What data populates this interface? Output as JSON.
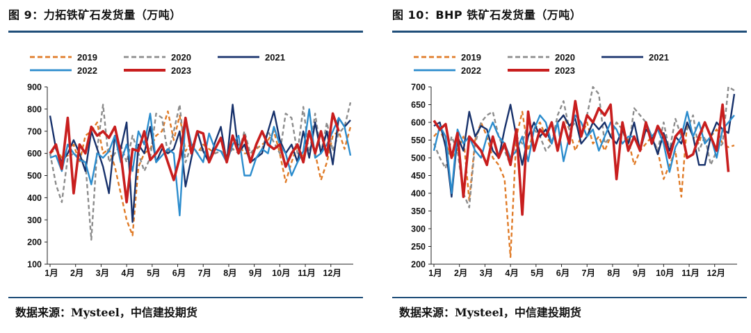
{
  "source_label": "数据来源：Mysteel，中信建投期货",
  "colors": {
    "2019": "#e07b27",
    "2020": "#8c8c8c",
    "2021": "#17316b",
    "2022": "#2b8ccd",
    "2023": "#c81e1e",
    "rule": "#1f4e79"
  },
  "chart_data": [
    {
      "type": "line",
      "title": "图 9：力拓铁矿石发货量（万吨）",
      "xlabel": "",
      "ylabel": "",
      "ylim": [
        100,
        900
      ],
      "yticks": [
        100,
        200,
        300,
        400,
        500,
        600,
        700,
        800,
        900
      ],
      "month_labels": [
        "1月",
        "2月",
        "3月",
        "4月",
        "5月",
        "6月",
        "7月",
        "8月",
        "9月",
        "10月",
        "11月",
        "12月"
      ],
      "x_unit": "week",
      "legend": [
        {
          "name": "2019",
          "style": "dashed"
        },
        {
          "name": "2020",
          "style": "dashed"
        },
        {
          "name": "2021",
          "style": "solid"
        },
        {
          "name": "2022",
          "style": "solid"
        },
        {
          "name": "2023",
          "style": "solid"
        }
      ],
      "series": [
        {
          "name": "2019",
          "values": [
            600,
            620,
            580,
            590,
            640,
            560,
            680,
            700,
            740,
            600,
            620,
            540,
            420,
            300,
            230,
            540,
            600,
            620,
            680,
            700,
            790,
            660,
            770,
            610,
            650,
            600,
            640,
            620,
            600,
            610,
            590,
            620,
            640,
            600,
            600,
            620,
            640,
            660,
            700,
            600,
            470,
            560,
            640,
            580,
            700,
            600,
            480,
            560,
            680,
            700,
            620,
            720
          ]
        },
        {
          "name": "2020",
          "values": [
            600,
            460,
            380,
            580,
            600,
            580,
            560,
            210,
            620,
            820,
            560,
            600,
            640,
            560,
            680,
            600,
            520,
            580,
            780,
            760,
            600,
            700,
            820,
            560,
            640,
            600,
            620,
            580,
            600,
            610,
            590,
            620,
            600,
            700,
            600,
            630,
            620,
            700,
            650,
            600,
            780,
            760,
            600,
            810,
            590,
            780,
            600,
            740,
            610,
            690,
            720,
            830
          ]
        },
        {
          "name": "2021",
          "values": [
            770,
            620,
            560,
            600,
            660,
            600,
            520,
            700,
            620,
            540,
            420,
            680,
            620,
            740,
            290,
            640,
            600,
            720,
            560,
            620,
            600,
            620,
            700,
            450,
            580,
            700,
            610,
            560,
            650,
            720,
            560,
            820,
            600,
            640,
            560,
            580,
            600,
            700,
            790,
            660,
            600,
            640,
            560,
            700,
            580,
            740,
            600,
            700,
            550,
            760,
            720,
            750
          ]
        },
        {
          "name": "2022",
          "values": [
            580,
            590,
            520,
            640,
            600,
            570,
            560,
            460,
            600,
            580,
            610,
            680,
            560,
            640,
            520,
            700,
            640,
            780,
            560,
            590,
            620,
            600,
            320,
            760,
            640,
            600,
            560,
            690,
            620,
            610,
            560,
            640,
            680,
            500,
            500,
            580,
            620,
            600,
            720,
            640,
            600,
            500,
            560,
            610,
            800,
            580,
            600,
            640,
            700,
            760,
            720,
            590
          ]
        },
        {
          "name": "2023",
          "values": [
            600,
            640,
            530,
            760,
            420,
            640,
            600,
            720,
            680,
            700,
            670,
            720,
            600,
            380,
            620,
            610,
            700,
            570,
            600,
            640,
            560,
            480,
            580,
            760,
            600,
            700,
            690,
            560,
            620,
            670,
            560,
            680,
            600,
            680,
            560,
            640,
            700,
            640,
            620,
            640,
            540,
            600,
            640,
            560,
            700,
            600,
            700,
            590,
            780,
            700
          ]
        }
      ]
    },
    {
      "type": "line",
      "title": "图 10：BHP 铁矿石发货量（万吨）",
      "xlabel": "",
      "ylabel": "",
      "ylim": [
        200,
        700
      ],
      "yticks": [
        200,
        250,
        300,
        350,
        400,
        450,
        500,
        550,
        600,
        650,
        700
      ],
      "month_labels": [
        "1月",
        "2月",
        "3月",
        "4月",
        "5月",
        "6月",
        "7月",
        "8月",
        "9月",
        "10月",
        "11月",
        "12月"
      ],
      "x_unit": "week",
      "legend": [
        {
          "name": "2019",
          "style": "dashed"
        },
        {
          "name": "2020",
          "style": "dashed"
        },
        {
          "name": "2021",
          "style": "solid"
        },
        {
          "name": "2022",
          "style": "solid"
        },
        {
          "name": "2023",
          "style": "solid"
        }
      ],
      "series": [
        {
          "name": "2019",
          "values": [
            560,
            580,
            540,
            500,
            520,
            560,
            380,
            550,
            600,
            560,
            500,
            480,
            440,
            220,
            560,
            630,
            520,
            580,
            600,
            560,
            540,
            600,
            620,
            580,
            520,
            560,
            600,
            540,
            560,
            520,
            560,
            600,
            580,
            550,
            480,
            520,
            540,
            560,
            520,
            440,
            480,
            520,
            390,
            600,
            560,
            540,
            600,
            560,
            580,
            540,
            530,
            535
          ]
        },
        {
          "name": "2020",
          "values": [
            540,
            500,
            470,
            560,
            520,
            400,
            360,
            540,
            600,
            620,
            630,
            560,
            520,
            480,
            560,
            540,
            600,
            580,
            560,
            520,
            540,
            620,
            660,
            580,
            600,
            560,
            620,
            700,
            680,
            540,
            560,
            600,
            580,
            520,
            640,
            620,
            600,
            560,
            520,
            600,
            520,
            610,
            560,
            580,
            620,
            520,
            560,
            480,
            520,
            540,
            700,
            690
          ]
        },
        {
          "name": "2021",
          "values": [
            590,
            600,
            530,
            390,
            560,
            520,
            630,
            560,
            590,
            580,
            520,
            500,
            580,
            650,
            560,
            480,
            560,
            600,
            560,
            580,
            540,
            600,
            620,
            590,
            610,
            540,
            560,
            600,
            580,
            600,
            560,
            540,
            580,
            540,
            600,
            520,
            580,
            560,
            510,
            570,
            520,
            560,
            540,
            600,
            560,
            480,
            480,
            560,
            600,
            580,
            570,
            680
          ]
        },
        {
          "name": "2022",
          "values": [
            520,
            590,
            560,
            400,
            580,
            540,
            560,
            520,
            500,
            560,
            600,
            560,
            540,
            500,
            520,
            560,
            490,
            580,
            620,
            600,
            540,
            600,
            490,
            560,
            620,
            600,
            560,
            580,
            520,
            560,
            600,
            580,
            540,
            560,
            560,
            520,
            600,
            560,
            580,
            540,
            460,
            530,
            560,
            630,
            560,
            600,
            540,
            560,
            500,
            580,
            600,
            620
          ]
        },
        {
          "name": "2023",
          "values": [
            605,
            580,
            595,
            500,
            570,
            390,
            560,
            540,
            520,
            480,
            560,
            500,
            540,
            480,
            580,
            340,
            630,
            520,
            580,
            560,
            600,
            520,
            600,
            540,
            660,
            560,
            620,
            600,
            640,
            620,
            650,
            440,
            600,
            520,
            560,
            520,
            600,
            540,
            590,
            560,
            500,
            560,
            580,
            500,
            510,
            560,
            600,
            560,
            520,
            650,
            460
          ]
        }
      ]
    }
  ]
}
